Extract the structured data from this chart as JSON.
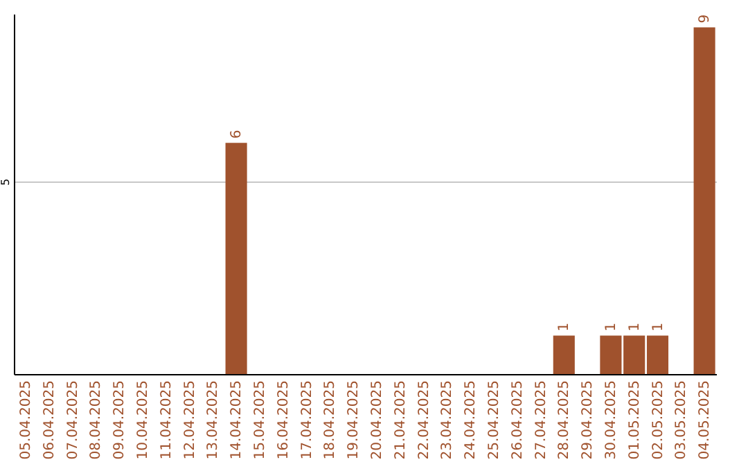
{
  "chart_data": {
    "type": "bar",
    "categories": [
      "05.04.2025",
      "06.04.2025",
      "07.04.2025",
      "08.04.2025",
      "09.04.2025",
      "10.04.2025",
      "11.04.2025",
      "12.04.2025",
      "13.04.2025",
      "14.04.2025",
      "15.04.2025",
      "16.04.2025",
      "17.04.2025",
      "18.04.2025",
      "19.04.2025",
      "20.04.2025",
      "21.04.2025",
      "22.04.2025",
      "23.04.2025",
      "24.04.2025",
      "25.04.2025",
      "26.04.2025",
      "27.04.2025",
      "28.04.2025",
      "29.04.2025",
      "30.04.2025",
      "01.05.2025",
      "02.05.2025",
      "03.05.2025",
      "04.05.2025"
    ],
    "values": [
      0,
      0,
      0,
      0,
      0,
      0,
      0,
      0,
      0,
      6,
      0,
      0,
      0,
      0,
      0,
      0,
      0,
      0,
      0,
      0,
      0,
      0,
      0,
      1,
      0,
      1,
      1,
      1,
      0,
      9
    ],
    "value_labels": [
      null,
      null,
      null,
      null,
      null,
      null,
      null,
      null,
      null,
      "6",
      null,
      null,
      null,
      null,
      null,
      null,
      null,
      null,
      null,
      null,
      null,
      null,
      null,
      "1",
      null,
      "1",
      "1",
      "1",
      null,
      "9"
    ],
    "color": "#a0522d",
    "ylim": [
      0,
      9.35
    ],
    "yticks": [
      5
    ],
    "grid": "y"
  }
}
